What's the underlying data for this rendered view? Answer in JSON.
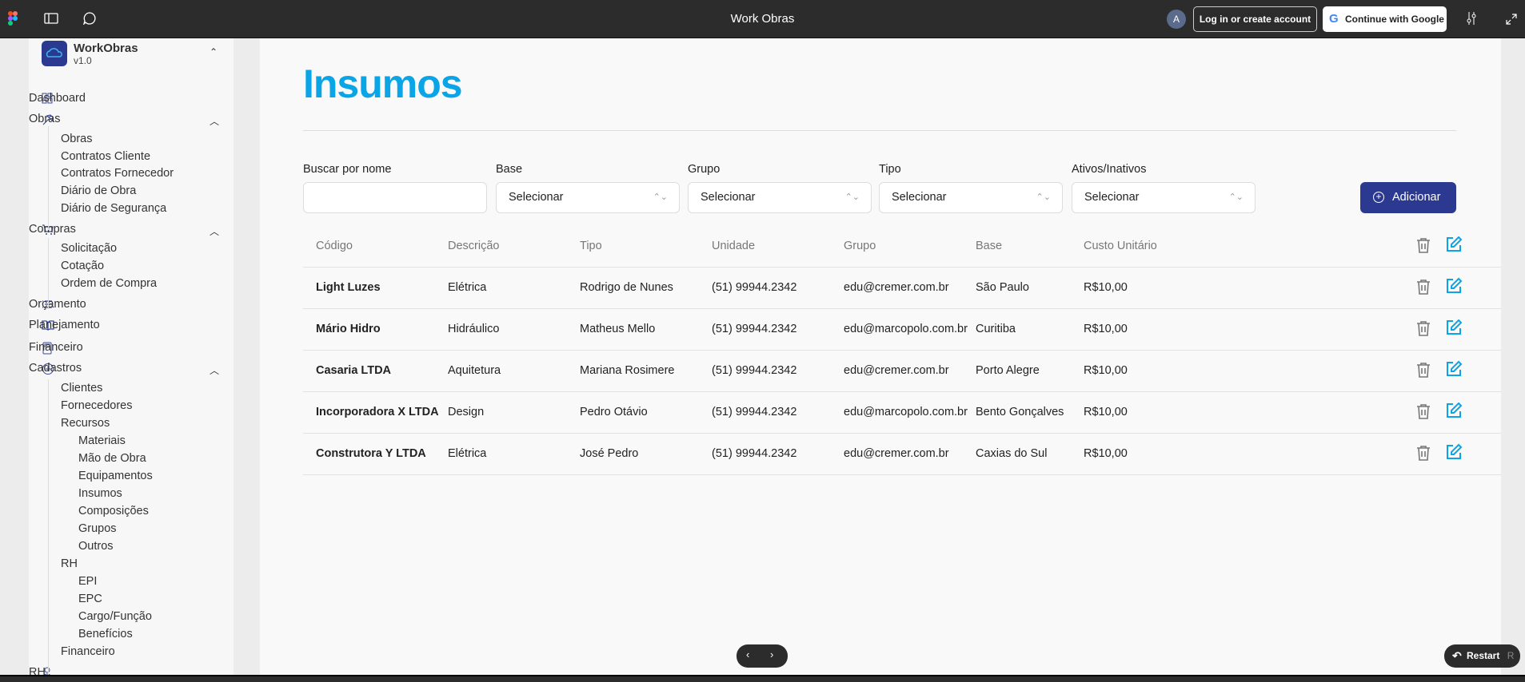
{
  "topbar": {
    "title": "Work Obras",
    "avatar": "A",
    "login": "Log in or create account",
    "google": "Continue with Google"
  },
  "sidebar": {
    "brand": "WorkObras",
    "version": "v1.0",
    "items": [
      {
        "label": "Dashboard",
        "level": "section",
        "icon": "dashboard-icon"
      },
      {
        "label": "Obras",
        "level": "section",
        "icon": "hammer-icon",
        "expanded": true
      },
      {
        "label": "Obras",
        "level": "sub"
      },
      {
        "label": "Contratos Cliente",
        "level": "sub"
      },
      {
        "label": "Contratos Fornecedor",
        "level": "sub"
      },
      {
        "label": "Diário de Obra",
        "level": "sub"
      },
      {
        "label": "Diário de Segurança",
        "level": "sub"
      },
      {
        "label": "Compras",
        "level": "section",
        "icon": "cart-icon",
        "expanded": true
      },
      {
        "label": "Solicitação",
        "level": "sub"
      },
      {
        "label": "Cotação",
        "level": "sub"
      },
      {
        "label": "Ordem de Compra",
        "level": "sub"
      },
      {
        "label": "Orçamento",
        "level": "section",
        "icon": "list-icon"
      },
      {
        "label": "Planejamento",
        "level": "section",
        "icon": "book-icon"
      },
      {
        "label": "Financeiro",
        "level": "section",
        "icon": "calculator-icon"
      },
      {
        "label": "Cadastros",
        "level": "section",
        "icon": "plus-circle-icon",
        "expanded": true
      },
      {
        "label": "Clientes",
        "level": "sub"
      },
      {
        "label": "Fornecedores",
        "level": "sub"
      },
      {
        "label": "Recursos",
        "level": "sub"
      },
      {
        "label": "Materiais",
        "level": "sub2"
      },
      {
        "label": "Mão de Obra",
        "level": "sub2"
      },
      {
        "label": "Equipamentos",
        "level": "sub2"
      },
      {
        "label": "Insumos",
        "level": "sub2"
      },
      {
        "label": "Composições",
        "level": "sub2"
      },
      {
        "label": "Grupos",
        "level": "sub2"
      },
      {
        "label": "Outros",
        "level": "sub2"
      },
      {
        "label": "RH",
        "level": "sub"
      },
      {
        "label": "EPI",
        "level": "sub2"
      },
      {
        "label": "EPC",
        "level": "sub2"
      },
      {
        "label": "Cargo/Função",
        "level": "sub2"
      },
      {
        "label": "Benefícios",
        "level": "sub2"
      },
      {
        "label": "Financeiro",
        "level": "sub"
      },
      {
        "label": "RH",
        "level": "section",
        "icon": "user-icon",
        "expanded": true
      }
    ]
  },
  "main": {
    "title": "Insumos",
    "filters": [
      {
        "label": "Buscar por nome",
        "value": "",
        "type": "text"
      },
      {
        "label": "Base",
        "value": "Selecionar",
        "type": "select"
      },
      {
        "label": "Grupo",
        "value": "Selecionar",
        "type": "select"
      },
      {
        "label": "Tipo",
        "value": "Selecionar",
        "type": "select"
      },
      {
        "label": "Ativos/Inativos",
        "value": "Selecionar",
        "type": "select"
      }
    ],
    "add_label": "Adicionar",
    "table": {
      "headers": [
        "Código",
        "Descrição",
        "Tipo",
        "Unidade",
        "Grupo",
        "Base",
        "Custo Unitário"
      ],
      "rows": [
        [
          "Light Luzes",
          "Elétrica",
          "Rodrigo de Nunes",
          "(51) 99944.2342",
          "edu@cremer.com.br",
          "São Paulo",
          "R$10,00"
        ],
        [
          "Mário Hidro",
          "Hidráulico",
          "Matheus Mello",
          "(51) 99944.2342",
          "edu@marcopolo.com.br",
          "Curitiba",
          "R$10,00"
        ],
        [
          "Casaria LTDA",
          "Aquitetura",
          "Mariana Rosimere",
          "(51) 99944.2342",
          "edu@cremer.com.br",
          "Porto Alegre",
          "R$10,00"
        ],
        [
          "Incorporadora X LTDA",
          "Design",
          "Pedro Otávio",
          "(51) 99944.2342",
          "edu@marcopolo.com.br",
          "Bento Gonçalves",
          "R$10,00"
        ],
        [
          "Construtora Y LTDA",
          "Elétrica",
          "José Pedro",
          "(51) 99944.2342",
          "edu@cremer.com.br",
          "Caxias do Sul",
          "R$10,00"
        ]
      ]
    }
  },
  "footer": {
    "restart": "Restart",
    "restart_key": "R"
  },
  "colors": {
    "accent": "#0aa5e6",
    "primary": "#2b3990",
    "topbar": "#2c2c2c"
  }
}
